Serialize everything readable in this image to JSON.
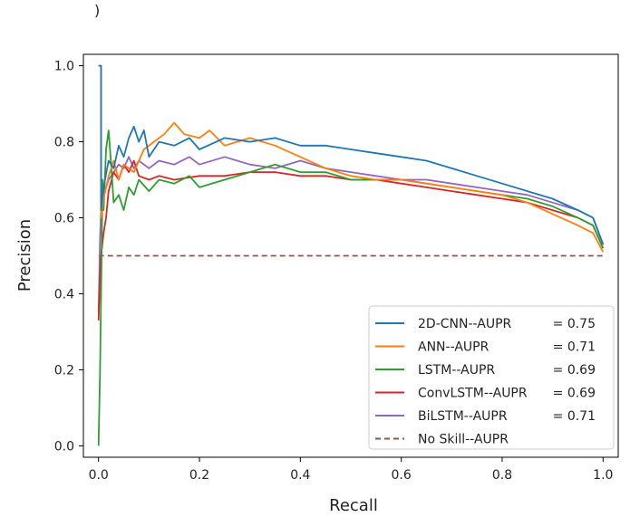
{
  "top_mark": ")",
  "chart_data": {
    "type": "line",
    "title": "",
    "xlabel": "Recall",
    "ylabel": "Precision",
    "xlim": [
      -0.03,
      1.03
    ],
    "ylim": [
      -0.03,
      1.03
    ],
    "xticks": [
      "0.0",
      "0.2",
      "0.4",
      "0.6",
      "0.8",
      "1.0"
    ],
    "yticks": [
      "0.0",
      "0.2",
      "0.4",
      "0.6",
      "0.8",
      "1.0"
    ],
    "grid": false,
    "legend_position": "lower-right",
    "series": [
      {
        "name": "2D-CNN--AUPR",
        "score": "= 0.75",
        "color": "#1f77b4",
        "dash": false,
        "points": [
          [
            0,
            1.0
          ],
          [
            0.005,
            1.0
          ],
          [
            0.005,
            0.62
          ],
          [
            0.01,
            0.68
          ],
          [
            0.02,
            0.75
          ],
          [
            0.03,
            0.73
          ],
          [
            0.04,
            0.79
          ],
          [
            0.05,
            0.76
          ],
          [
            0.06,
            0.81
          ],
          [
            0.07,
            0.84
          ],
          [
            0.08,
            0.8
          ],
          [
            0.09,
            0.83
          ],
          [
            0.1,
            0.76
          ],
          [
            0.12,
            0.8
          ],
          [
            0.15,
            0.79
          ],
          [
            0.18,
            0.81
          ],
          [
            0.2,
            0.78
          ],
          [
            0.25,
            0.81
          ],
          [
            0.3,
            0.8
          ],
          [
            0.35,
            0.81
          ],
          [
            0.4,
            0.79
          ],
          [
            0.45,
            0.79
          ],
          [
            0.5,
            0.78
          ],
          [
            0.55,
            0.77
          ],
          [
            0.6,
            0.76
          ],
          [
            0.65,
            0.75
          ],
          [
            0.7,
            0.73
          ],
          [
            0.75,
            0.71
          ],
          [
            0.8,
            0.69
          ],
          [
            0.85,
            0.67
          ],
          [
            0.9,
            0.65
          ],
          [
            0.95,
            0.62
          ],
          [
            0.98,
            0.6
          ],
          [
            1.0,
            0.53
          ]
        ]
      },
      {
        "name": "ANN--AUPR",
        "score": "= 0.71",
        "color": "#ff7f0e",
        "dash": false,
        "points": [
          [
            0,
            1.0
          ],
          [
            0.005,
            1.0
          ],
          [
            0.005,
            0.6
          ],
          [
            0.01,
            0.65
          ],
          [
            0.02,
            0.71
          ],
          [
            0.03,
            0.75
          ],
          [
            0.04,
            0.7
          ],
          [
            0.05,
            0.74
          ],
          [
            0.07,
            0.72
          ],
          [
            0.09,
            0.78
          ],
          [
            0.11,
            0.8
          ],
          [
            0.13,
            0.82
          ],
          [
            0.15,
            0.85
          ],
          [
            0.17,
            0.82
          ],
          [
            0.2,
            0.81
          ],
          [
            0.22,
            0.83
          ],
          [
            0.25,
            0.79
          ],
          [
            0.3,
            0.81
          ],
          [
            0.35,
            0.79
          ],
          [
            0.4,
            0.76
          ],
          [
            0.45,
            0.73
          ],
          [
            0.5,
            0.71
          ],
          [
            0.55,
            0.7
          ],
          [
            0.6,
            0.7
          ],
          [
            0.65,
            0.69
          ],
          [
            0.7,
            0.68
          ],
          [
            0.75,
            0.67
          ],
          [
            0.8,
            0.66
          ],
          [
            0.85,
            0.64
          ],
          [
            0.9,
            0.61
          ],
          [
            0.95,
            0.58
          ],
          [
            0.98,
            0.56
          ],
          [
            1.0,
            0.51
          ]
        ]
      },
      {
        "name": "LSTM--AUPR",
        "score": "= 0.69",
        "color": "#2ca02c",
        "dash": false,
        "points": [
          [
            0,
            0.0
          ],
          [
            0.003,
            0.2
          ],
          [
            0.005,
            0.4
          ],
          [
            0.008,
            0.7
          ],
          [
            0.01,
            0.62
          ],
          [
            0.015,
            0.78
          ],
          [
            0.02,
            0.83
          ],
          [
            0.025,
            0.74
          ],
          [
            0.03,
            0.64
          ],
          [
            0.04,
            0.66
          ],
          [
            0.05,
            0.62
          ],
          [
            0.06,
            0.68
          ],
          [
            0.07,
            0.66
          ],
          [
            0.08,
            0.7
          ],
          [
            0.1,
            0.67
          ],
          [
            0.12,
            0.7
          ],
          [
            0.15,
            0.69
          ],
          [
            0.18,
            0.71
          ],
          [
            0.2,
            0.68
          ],
          [
            0.25,
            0.7
          ],
          [
            0.3,
            0.72
          ],
          [
            0.35,
            0.74
          ],
          [
            0.4,
            0.72
          ],
          [
            0.45,
            0.72
          ],
          [
            0.5,
            0.7
          ],
          [
            0.55,
            0.7
          ],
          [
            0.6,
            0.7
          ],
          [
            0.65,
            0.69
          ],
          [
            0.7,
            0.68
          ],
          [
            0.75,
            0.67
          ],
          [
            0.8,
            0.66
          ],
          [
            0.85,
            0.65
          ],
          [
            0.9,
            0.63
          ],
          [
            0.95,
            0.6
          ],
          [
            0.98,
            0.58
          ],
          [
            1.0,
            0.52
          ]
        ]
      },
      {
        "name": "ConvLSTM--AUPR",
        "score": "= 0.69",
        "color": "#d62728",
        "dash": false,
        "points": [
          [
            0,
            0.33
          ],
          [
            0.003,
            0.45
          ],
          [
            0.005,
            0.5
          ],
          [
            0.01,
            0.56
          ],
          [
            0.015,
            0.6
          ],
          [
            0.02,
            0.67
          ],
          [
            0.03,
            0.72
          ],
          [
            0.04,
            0.7
          ],
          [
            0.05,
            0.74
          ],
          [
            0.06,
            0.72
          ],
          [
            0.07,
            0.75
          ],
          [
            0.08,
            0.71
          ],
          [
            0.1,
            0.7
          ],
          [
            0.12,
            0.71
          ],
          [
            0.15,
            0.7
          ],
          [
            0.2,
            0.71
          ],
          [
            0.25,
            0.71
          ],
          [
            0.3,
            0.72
          ],
          [
            0.35,
            0.72
          ],
          [
            0.4,
            0.71
          ],
          [
            0.45,
            0.71
          ],
          [
            0.5,
            0.7
          ],
          [
            0.55,
            0.7
          ],
          [
            0.6,
            0.69
          ],
          [
            0.65,
            0.68
          ],
          [
            0.7,
            0.67
          ],
          [
            0.75,
            0.66
          ],
          [
            0.8,
            0.65
          ],
          [
            0.85,
            0.64
          ],
          [
            0.9,
            0.62
          ],
          [
            0.95,
            0.6
          ],
          [
            0.98,
            0.58
          ],
          [
            1.0,
            0.52
          ]
        ]
      },
      {
        "name": "BiLSTM--AUPR",
        "score": "= 0.71",
        "color": "#9467bd",
        "dash": false,
        "points": [
          [
            0,
            0.35
          ],
          [
            0.003,
            0.55
          ],
          [
            0.005,
            0.62
          ],
          [
            0.01,
            0.66
          ],
          [
            0.02,
            0.7
          ],
          [
            0.03,
            0.72
          ],
          [
            0.04,
            0.74
          ],
          [
            0.05,
            0.73
          ],
          [
            0.06,
            0.76
          ],
          [
            0.07,
            0.73
          ],
          [
            0.08,
            0.75
          ],
          [
            0.1,
            0.73
          ],
          [
            0.12,
            0.75
          ],
          [
            0.15,
            0.74
          ],
          [
            0.18,
            0.76
          ],
          [
            0.2,
            0.74
          ],
          [
            0.25,
            0.76
          ],
          [
            0.3,
            0.74
          ],
          [
            0.35,
            0.73
          ],
          [
            0.4,
            0.75
          ],
          [
            0.45,
            0.73
          ],
          [
            0.5,
            0.72
          ],
          [
            0.55,
            0.71
          ],
          [
            0.6,
            0.7
          ],
          [
            0.65,
            0.7
          ],
          [
            0.7,
            0.69
          ],
          [
            0.75,
            0.68
          ],
          [
            0.8,
            0.67
          ],
          [
            0.85,
            0.66
          ],
          [
            0.9,
            0.64
          ],
          [
            0.95,
            0.62
          ],
          [
            0.98,
            0.6
          ],
          [
            1.0,
            0.53
          ]
        ]
      },
      {
        "name": "No Skill--AUPR",
        "score": "",
        "color": "#8c564b",
        "dash": true,
        "points": [
          [
            0,
            0.5
          ],
          [
            1.0,
            0.5
          ]
        ]
      }
    ]
  }
}
